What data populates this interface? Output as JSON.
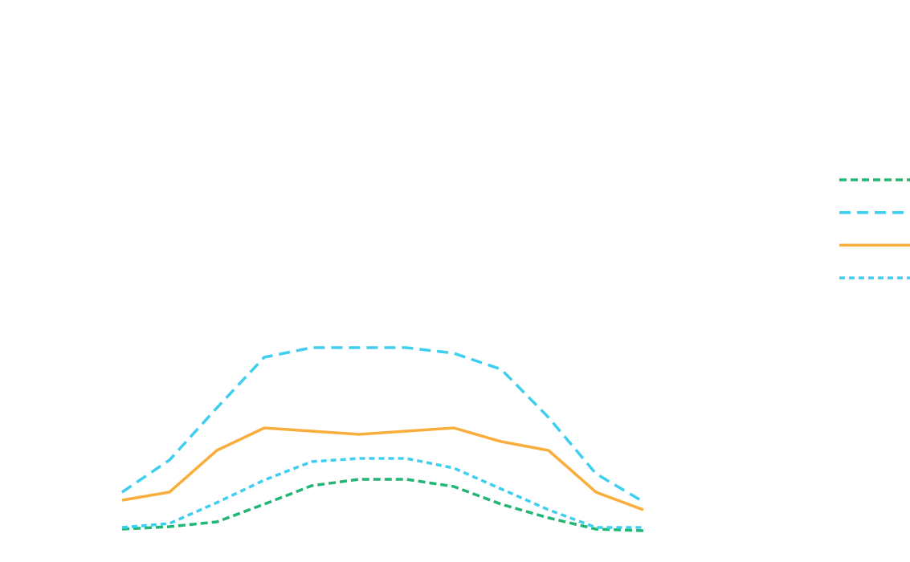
{
  "chart_data": {
    "type": "line",
    "title": "",
    "xlabel": "",
    "ylabel": "",
    "grid": false,
    "legend_placement": "right",
    "x": [
      1,
      2,
      3,
      4,
      5,
      6,
      7,
      8,
      9,
      10,
      11,
      12
    ],
    "ylim": [
      0,
      66
    ],
    "series": [
      {
        "color": "#22b573",
        "style": "dashed-short",
        "values": [
          0.6,
          0.9,
          1.5,
          3.7,
          6.0,
          6.8,
          6.8,
          5.9,
          3.7,
          2.0,
          0.6,
          0.4
        ]
      },
      {
        "color": "#3ecff0",
        "style": "dashed-long",
        "values": [
          5.2,
          9.2,
          15.7,
          22.0,
          23.2,
          23.2,
          23.2,
          22.5,
          20.5,
          14.5,
          7.5,
          4.0
        ]
      },
      {
        "color": "#f9ad3a",
        "style": "solid",
        "values": [
          4.2,
          5.2,
          10.4,
          13.2,
          12.8,
          12.4,
          12.8,
          13.2,
          11.5,
          10.4,
          5.2,
          3.0
        ]
      },
      {
        "color": "#3ecff0",
        "style": "dotted",
        "values": [
          0.8,
          1.3,
          3.9,
          6.7,
          9.0,
          9.4,
          9.4,
          8.2,
          5.6,
          3.0,
          0.8,
          0.8
        ]
      }
    ]
  }
}
